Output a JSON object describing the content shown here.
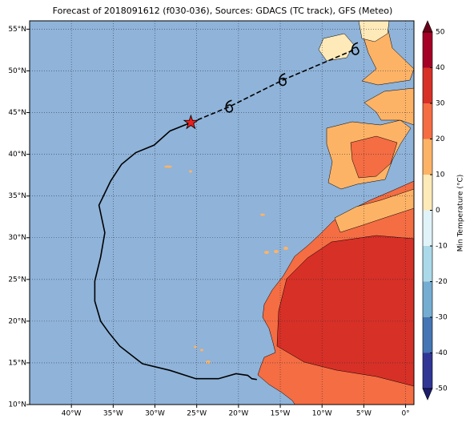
{
  "map": {
    "title": "Forecast of 2018091612 (f030-036), Sources: GDACS (TC track), GFS (Meteo)",
    "xlim": [
      -45,
      1
    ],
    "ylim": [
      10,
      56
    ],
    "xticks": [
      {
        "value": -40,
        "label": "40°W"
      },
      {
        "value": -35,
        "label": "35°W"
      },
      {
        "value": -30,
        "label": "30°W"
      },
      {
        "value": -25,
        "label": "25°W"
      },
      {
        "value": -20,
        "label": "20°W"
      },
      {
        "value": -15,
        "label": "15°W"
      },
      {
        "value": -10,
        "label": "10°W"
      },
      {
        "value": -5,
        "label": "5°W"
      },
      {
        "value": 0,
        "label": "0°"
      }
    ],
    "yticks": [
      {
        "value": 10,
        "label": "10°N"
      },
      {
        "value": 15,
        "label": "15°N"
      },
      {
        "value": 20,
        "label": "20°N"
      },
      {
        "value": 25,
        "label": "25°N"
      },
      {
        "value": 30,
        "label": "30°N"
      },
      {
        "value": 35,
        "label": "35°N"
      },
      {
        "value": 40,
        "label": "40°N"
      },
      {
        "value": 45,
        "label": "45°N"
      },
      {
        "value": 50,
        "label": "50°N"
      },
      {
        "value": 55,
        "label": "55°N"
      }
    ],
    "grid": true,
    "ocean_color": "#8fb3d9",
    "track": {
      "observed": {
        "lon": [
          -17.8,
          -18.4,
          -18.9,
          -20.3,
          -22.4,
          -25.1,
          -28.2,
          -31.5,
          -34.2,
          -35.5,
          -36.5,
          -37.2,
          -37.2,
          -36.5,
          -36.0,
          -36.7,
          -35.3,
          -34.0,
          -32.3,
          -30.1,
          -28.2,
          -25.7
        ],
        "lat": [
          13.0,
          13.1,
          13.5,
          13.7,
          13.1,
          13.1,
          14.1,
          14.9,
          17.0,
          18.6,
          20.0,
          22.4,
          24.8,
          27.7,
          30.6,
          33.9,
          36.8,
          38.8,
          40.2,
          41.1,
          42.8,
          43.8
        ]
      },
      "forecast": {
        "lon": [
          -25.7,
          -21.1,
          -14.7,
          -6.0
        ],
        "lat": [
          43.8,
          45.7,
          48.9,
          52.6
        ]
      },
      "current": {
        "lon": -25.7,
        "lat": 43.8,
        "color": "#e8201e"
      }
    },
    "colorbar": {
      "label": "Min Temperature (°C)",
      "ticks": [
        -50,
        -40,
        -30,
        -20,
        -10,
        0,
        10,
        20,
        30,
        40,
        50
      ],
      "colors": [
        "#313695",
        "#4575b4",
        "#74add1",
        "#abd9e9",
        "#e0f3f8",
        "#fee9b8",
        "#fdb366",
        "#f46d43",
        "#d73027",
        "#a50026"
      ],
      "under_color": "#1c1c6e",
      "over_color": "#6b0019"
    }
  }
}
